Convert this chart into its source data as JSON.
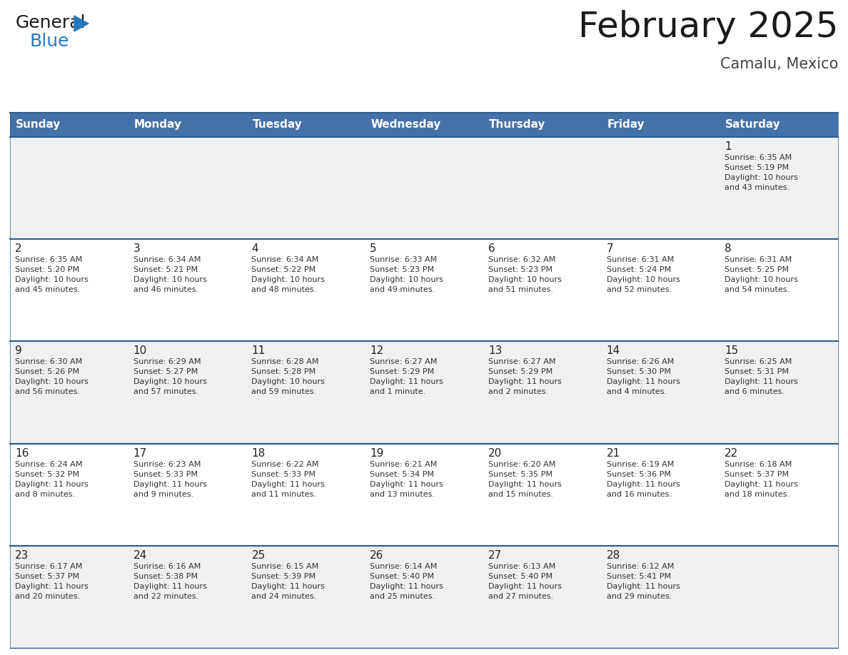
{
  "title": "February 2025",
  "subtitle": "Camalu, Mexico",
  "header_bg_color": "#4472A8",
  "header_text_color": "#FFFFFF",
  "day_names": [
    "Sunday",
    "Monday",
    "Tuesday",
    "Wednesday",
    "Thursday",
    "Friday",
    "Saturday"
  ],
  "cell_bg_odd": "#F0F0F0",
  "cell_bg_even": "#FFFFFF",
  "cell_border_color": "#2E5B8A",
  "day_number_color": "#222222",
  "info_text_color": "#333333",
  "logo_general_color": "#1a1a1a",
  "logo_blue_color": "#2878BE",
  "weeks": [
    {
      "days": [
        {
          "day": null,
          "info": null
        },
        {
          "day": null,
          "info": null
        },
        {
          "day": null,
          "info": null
        },
        {
          "day": null,
          "info": null
        },
        {
          "day": null,
          "info": null
        },
        {
          "day": null,
          "info": null
        },
        {
          "day": 1,
          "info": "Sunrise: 6:35 AM\nSunset: 5:19 PM\nDaylight: 10 hours\nand 43 minutes."
        }
      ]
    },
    {
      "days": [
        {
          "day": 2,
          "info": "Sunrise: 6:35 AM\nSunset: 5:20 PM\nDaylight: 10 hours\nand 45 minutes."
        },
        {
          "day": 3,
          "info": "Sunrise: 6:34 AM\nSunset: 5:21 PM\nDaylight: 10 hours\nand 46 minutes."
        },
        {
          "day": 4,
          "info": "Sunrise: 6:34 AM\nSunset: 5:22 PM\nDaylight: 10 hours\nand 48 minutes."
        },
        {
          "day": 5,
          "info": "Sunrise: 6:33 AM\nSunset: 5:23 PM\nDaylight: 10 hours\nand 49 minutes."
        },
        {
          "day": 6,
          "info": "Sunrise: 6:32 AM\nSunset: 5:23 PM\nDaylight: 10 hours\nand 51 minutes."
        },
        {
          "day": 7,
          "info": "Sunrise: 6:31 AM\nSunset: 5:24 PM\nDaylight: 10 hours\nand 52 minutes."
        },
        {
          "day": 8,
          "info": "Sunrise: 6:31 AM\nSunset: 5:25 PM\nDaylight: 10 hours\nand 54 minutes."
        }
      ]
    },
    {
      "days": [
        {
          "day": 9,
          "info": "Sunrise: 6:30 AM\nSunset: 5:26 PM\nDaylight: 10 hours\nand 56 minutes."
        },
        {
          "day": 10,
          "info": "Sunrise: 6:29 AM\nSunset: 5:27 PM\nDaylight: 10 hours\nand 57 minutes."
        },
        {
          "day": 11,
          "info": "Sunrise: 6:28 AM\nSunset: 5:28 PM\nDaylight: 10 hours\nand 59 minutes."
        },
        {
          "day": 12,
          "info": "Sunrise: 6:27 AM\nSunset: 5:29 PM\nDaylight: 11 hours\nand 1 minute."
        },
        {
          "day": 13,
          "info": "Sunrise: 6:27 AM\nSunset: 5:29 PM\nDaylight: 11 hours\nand 2 minutes."
        },
        {
          "day": 14,
          "info": "Sunrise: 6:26 AM\nSunset: 5:30 PM\nDaylight: 11 hours\nand 4 minutes."
        },
        {
          "day": 15,
          "info": "Sunrise: 6:25 AM\nSunset: 5:31 PM\nDaylight: 11 hours\nand 6 minutes."
        }
      ]
    },
    {
      "days": [
        {
          "day": 16,
          "info": "Sunrise: 6:24 AM\nSunset: 5:32 PM\nDaylight: 11 hours\nand 8 minutes."
        },
        {
          "day": 17,
          "info": "Sunrise: 6:23 AM\nSunset: 5:33 PM\nDaylight: 11 hours\nand 9 minutes."
        },
        {
          "day": 18,
          "info": "Sunrise: 6:22 AM\nSunset: 5:33 PM\nDaylight: 11 hours\nand 11 minutes."
        },
        {
          "day": 19,
          "info": "Sunrise: 6:21 AM\nSunset: 5:34 PM\nDaylight: 11 hours\nand 13 minutes."
        },
        {
          "day": 20,
          "info": "Sunrise: 6:20 AM\nSunset: 5:35 PM\nDaylight: 11 hours\nand 15 minutes."
        },
        {
          "day": 21,
          "info": "Sunrise: 6:19 AM\nSunset: 5:36 PM\nDaylight: 11 hours\nand 16 minutes."
        },
        {
          "day": 22,
          "info": "Sunrise: 6:18 AM\nSunset: 5:37 PM\nDaylight: 11 hours\nand 18 minutes."
        }
      ]
    },
    {
      "days": [
        {
          "day": 23,
          "info": "Sunrise: 6:17 AM\nSunset: 5:37 PM\nDaylight: 11 hours\nand 20 minutes."
        },
        {
          "day": 24,
          "info": "Sunrise: 6:16 AM\nSunset: 5:38 PM\nDaylight: 11 hours\nand 22 minutes."
        },
        {
          "day": 25,
          "info": "Sunrise: 6:15 AM\nSunset: 5:39 PM\nDaylight: 11 hours\nand 24 minutes."
        },
        {
          "day": 26,
          "info": "Sunrise: 6:14 AM\nSunset: 5:40 PM\nDaylight: 11 hours\nand 25 minutes."
        },
        {
          "day": 27,
          "info": "Sunrise: 6:13 AM\nSunset: 5:40 PM\nDaylight: 11 hours\nand 27 minutes."
        },
        {
          "day": 28,
          "info": "Sunrise: 6:12 AM\nSunset: 5:41 PM\nDaylight: 11 hours\nand 29 minutes."
        },
        {
          "day": null,
          "info": null
        }
      ]
    }
  ],
  "title_fontsize": 36,
  "subtitle_fontsize": 15,
  "header_fontsize": 11,
  "day_num_fontsize": 11,
  "info_fontsize": 8
}
